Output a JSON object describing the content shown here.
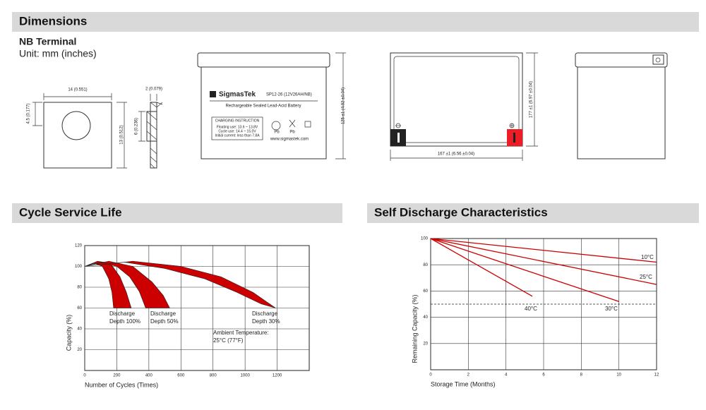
{
  "header": {
    "title": "Dimensions"
  },
  "terminal": {
    "title": "NB Terminal",
    "unit": "Unit: mm (inches)",
    "width": "14 (0.551)",
    "offset": "4.5 (0.177)",
    "height": "13 (0.512)",
    "thickness": "2 (0.079)",
    "hole": "6 (0.236)"
  },
  "battery": {
    "brand": "SigmasTek",
    "model": "SP12-26 (12V26AH/NB)",
    "description": "Rechargeable Sealed Lead-Acid Battery",
    "charging": [
      "CHARGING INSTRUCTION",
      "Floating use: 13.6 ~ 13.8V",
      "Cycle use: 14.4 ~ 15.0V",
      "Initial current: less than 7.8A"
    ],
    "pb": "Pb",
    "website": "www.sigmastek.com",
    "height": "125 ±1 (4.92 ±0.04)",
    "length": "167 ±1 (6.56 ±0.04)",
    "width": "177 ±1 (6.97 ±0.04)"
  },
  "chart_data": [
    {
      "type": "band",
      "title": "Cycle Service Life",
      "x_label": "Number of Cycles (Times)",
      "y_label": "Capacity (%)",
      "xlim": [
        0,
        1400
      ],
      "ylim": [
        0,
        120
      ],
      "xticks": [
        0,
        200,
        400,
        600,
        800,
        1000,
        1200
      ],
      "yticks": [
        20,
        40,
        60,
        80,
        100,
        120
      ],
      "grid": true,
      "color": "#cc0000",
      "series": [
        {
          "label": [
            "Discharge",
            "Depth 100%"
          ],
          "upper": {
            "x": [
              0,
              80,
              160,
              220,
              260,
              290
            ],
            "y": [
              100,
              105,
              103,
              90,
              75,
              60
            ]
          },
          "lower": {
            "x": [
              0,
              60,
              110,
              150,
              170,
              180
            ],
            "y": [
              100,
              103,
              100,
              88,
              75,
              60
            ]
          }
        },
        {
          "label": [
            "Discharge",
            "Depth 50%"
          ],
          "upper": {
            "x": [
              0,
              150,
              300,
              420,
              490,
              530
            ],
            "y": [
              100,
              105,
              100,
              85,
              72,
              60
            ]
          },
          "lower": {
            "x": [
              0,
              100,
              200,
              280,
              340,
              380
            ],
            "y": [
              100,
              104,
              100,
              90,
              76,
              60
            ]
          }
        },
        {
          "label": [
            "Discharge",
            "Depth 30%"
          ],
          "upper": {
            "x": [
              0,
              300,
              600,
              850,
              1050,
              1190
            ],
            "y": [
              100,
              105,
              100,
              90,
              75,
              60
            ]
          },
          "lower": {
            "x": [
              0,
              250,
              500,
              750,
              950,
              1100,
              1190
            ],
            "y": [
              100,
              104,
              98,
              88,
              75,
              64,
              60
            ]
          }
        }
      ],
      "annotation": [
        "Ambient Temperature:",
        "25°C (77°F)"
      ]
    },
    {
      "type": "line",
      "title": "Self Discharge Characteristics",
      "x_label": "Storage Time (Months)",
      "y_label": "Remaining Capacity (%)",
      "xlim": [
        0,
        12
      ],
      "ylim": [
        0,
        100
      ],
      "xticks": [
        0,
        2,
        4,
        6,
        8,
        10,
        12
      ],
      "yticks": [
        20,
        40,
        60,
        80,
        100
      ],
      "grid": true,
      "reference_line": 50,
      "series": [
        {
          "name": "10°C",
          "color": "#cc0000",
          "x": [
            0,
            12
          ],
          "values": [
            100,
            82
          ]
        },
        {
          "name": "25°C",
          "color": "#cc0000",
          "x": [
            0,
            12
          ],
          "values": [
            100,
            65
          ]
        },
        {
          "name": "30°C",
          "color": "#cc0000",
          "x": [
            0,
            10
          ],
          "values": [
            100,
            52
          ]
        },
        {
          "name": "40°C",
          "color": "#cc0000",
          "x": [
            0,
            5.4
          ],
          "values": [
            100,
            56
          ]
        }
      ]
    }
  ]
}
